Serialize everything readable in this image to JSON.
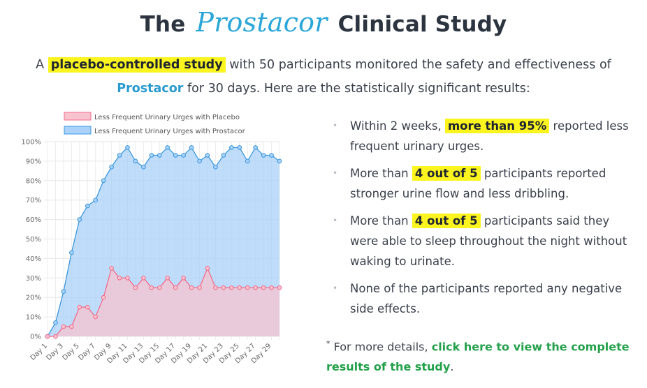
{
  "header": {
    "title_prefix": "The",
    "brand": "Prostacor",
    "title_suffix": "Clinical Study"
  },
  "intro": {
    "part1": "A",
    "highlight": "placebo-controlled study",
    "part2": "with 50 participants monitored the safety and effectiveness of",
    "brand": "Prostacor",
    "part3": "for 30 days. Here are the statistically significant results:"
  },
  "bullets": [
    {
      "pre": "Within 2 weeks,",
      "hl": "more than 95%",
      "post": "reported less frequent urinary urges."
    },
    {
      "pre": "More than",
      "hl": "4 out of 5",
      "post": "participants reported stronger urine flow and less dribbling."
    },
    {
      "pre": "More than",
      "hl": "4 out of 5",
      "post": "participants said they were able to sleep throughout the night without waking to urinate."
    },
    {
      "pre": "None of the participants reported any negative side effects.",
      "hl": "",
      "post": ""
    }
  ],
  "footnote": {
    "asterisk": "*",
    "pre": "For more details,",
    "link": "click here to view the complete results of the study",
    "post": "."
  },
  "colors": {
    "brand": "#2aa6d8",
    "highlight": "#fbf41f",
    "link": "#23a04a",
    "placebo_line": "#f06b8b",
    "placebo_fill": "#f7c3cf",
    "prostacor_line": "#3a96dd",
    "prostacor_fill": "#aad2fa"
  },
  "chart_data": {
    "type": "area",
    "x": [
      "Day 1",
      "Day 2",
      "Day 3",
      "Day 4",
      "Day 5",
      "Day 6",
      "Day 7",
      "Day 8",
      "Day 9",
      "Day 10",
      "Day 11",
      "Day 12",
      "Day 13",
      "Day 14",
      "Day 15",
      "Day 16",
      "Day 17",
      "Day 18",
      "Day 19",
      "Day 20",
      "Day 21",
      "Day 22",
      "Day 23",
      "Day 24",
      "Day 25",
      "Day 26",
      "Day 27",
      "Day 28",
      "Day 29",
      "Day 30"
    ],
    "x_tick_labels": [
      "Day 1",
      "Day 3",
      "Day 5",
      "Day 7",
      "Day 9",
      "Day 11",
      "Day 13",
      "Day 15",
      "Day 17",
      "Day 19",
      "Day 21",
      "Day 23",
      "Day 25",
      "Day 27",
      "Day 29"
    ],
    "y_tick_labels": [
      "0%",
      "10%",
      "20%",
      "30%",
      "40%",
      "50%",
      "60%",
      "70%",
      "80%",
      "90%",
      "100%"
    ],
    "ylim": [
      0,
      100
    ],
    "grid": true,
    "legend_position": "top",
    "series": [
      {
        "name": "Less Frequent Urinary Urges with Placebo",
        "values": [
          0,
          0,
          5,
          5,
          15,
          15,
          10,
          20,
          35,
          30,
          30,
          25,
          30,
          25,
          25,
          30,
          25,
          30,
          25,
          25,
          35,
          25,
          25,
          25,
          25,
          25,
          25,
          25,
          25,
          25
        ]
      },
      {
        "name": "Less Frequent Urinary Urges with Prostacor",
        "values": [
          0,
          7,
          23,
          43,
          60,
          67,
          70,
          80,
          87,
          93,
          97,
          90,
          87,
          93,
          93,
          97,
          93,
          93,
          97,
          90,
          93,
          87,
          93,
          97,
          97,
          90,
          97,
          93,
          93,
          90
        ]
      }
    ]
  }
}
